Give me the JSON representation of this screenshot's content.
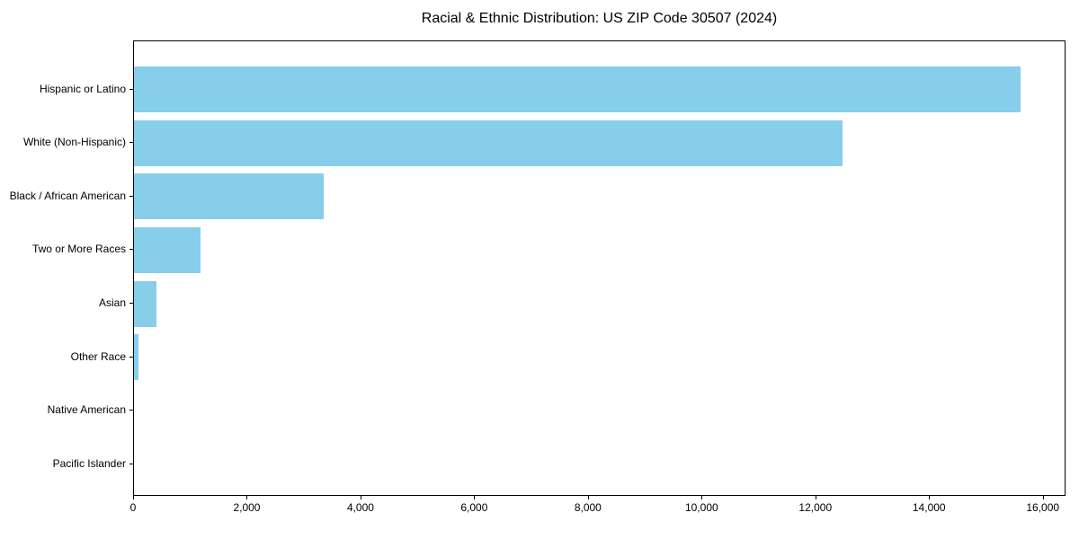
{
  "chart_data": {
    "type": "bar",
    "orientation": "horizontal",
    "title": "Racial & Ethnic Distribution: US ZIP Code 30507 (2024)",
    "categories": [
      "Hispanic or Latino",
      "White (Non-Hispanic)",
      "Black / African American",
      "Two or More Races",
      "Asian",
      "Other Race",
      "Native American",
      "Pacific Islander"
    ],
    "values": [
      15620,
      12490,
      3340,
      1170,
      390,
      80,
      0,
      0
    ],
    "xlabel": "",
    "ylabel": "",
    "xlim": [
      0,
      16400
    ],
    "x_ticks": [
      0,
      2000,
      4000,
      6000,
      8000,
      10000,
      12000,
      14000,
      16000
    ],
    "x_tick_labels": [
      "0",
      "2,000",
      "4,000",
      "6,000",
      "8,000",
      "10,000",
      "12,000",
      "14,000",
      "16,000"
    ],
    "bar_color": "#87CEEB",
    "spine_color": "#000000",
    "text_color": "#000000",
    "grid": false,
    "legend": null
  }
}
